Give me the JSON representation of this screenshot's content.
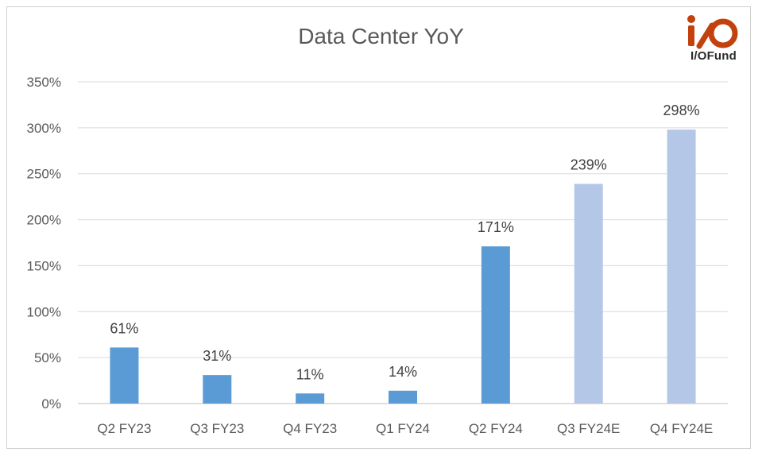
{
  "chart_data": {
    "type": "bar",
    "title": "Data Center YoY",
    "xlabel": "",
    "ylabel": "",
    "categories": [
      "Q2 FY23",
      "Q3 FY23",
      "Q4 FY23",
      "Q1 FY24",
      "Q2 FY24",
      "Q3 FY24E",
      "Q4 FY24E"
    ],
    "values": [
      61,
      31,
      11,
      14,
      171,
      239,
      298
    ],
    "data_labels": [
      "61%",
      "31%",
      "11%",
      "14%",
      "171%",
      "239%",
      "298%"
    ],
    "ylim": [
      0,
      350
    ],
    "yticks": [
      0,
      50,
      100,
      150,
      200,
      250,
      300,
      350
    ],
    "ytick_labels": [
      "0%",
      "50%",
      "100%",
      "150%",
      "200%",
      "250%",
      "300%",
      "350%"
    ],
    "bar_colors": [
      "#5b9bd5",
      "#5b9bd5",
      "#5b9bd5",
      "#5b9bd5",
      "#5b9bd5",
      "#b4c7e7",
      "#b4c7e7"
    ],
    "grid": true,
    "legend": "none"
  },
  "logo": {
    "brand": "I/OFund"
  }
}
